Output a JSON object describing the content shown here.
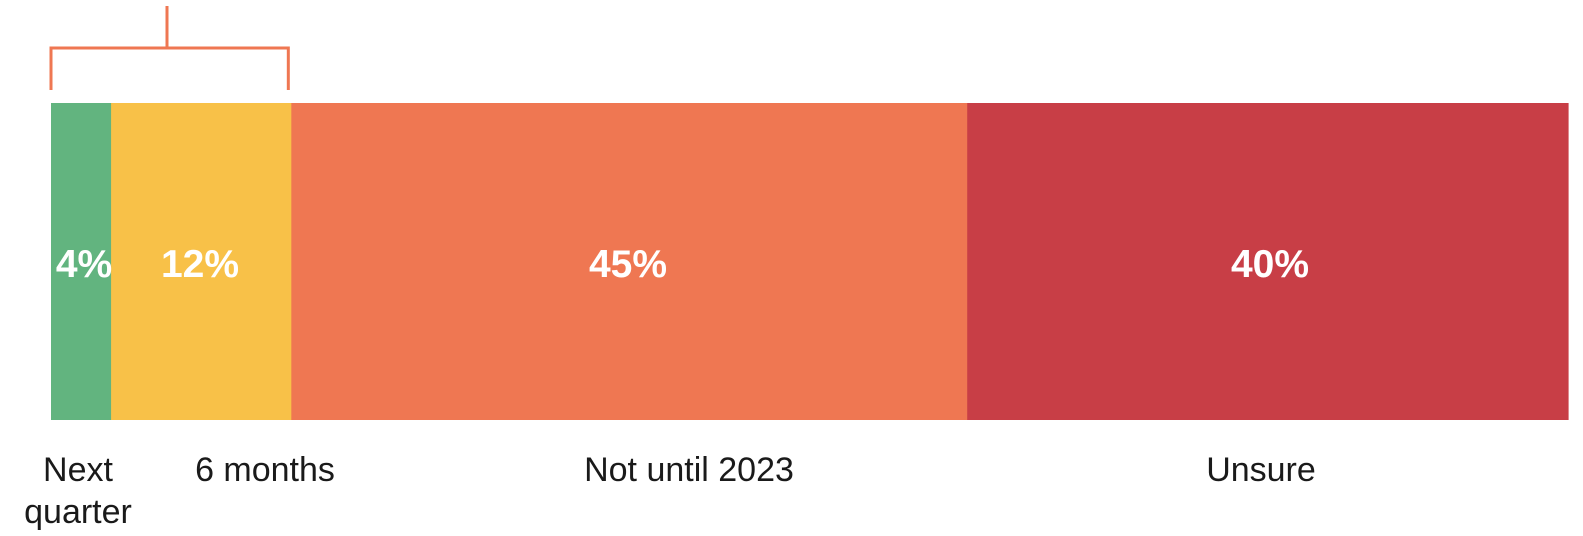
{
  "chart_data": {
    "type": "bar",
    "orientation": "horizontal-stacked",
    "categories": [
      "Next quarter",
      "6 months",
      "Not until 2023",
      "Unsure"
    ],
    "values": [
      4,
      12,
      45,
      40
    ],
    "value_labels": [
      "4%",
      "12%",
      "45%",
      "40%"
    ],
    "colors": [
      "#62b47f",
      "#f8c148",
      "#ef7752",
      "#c83e46"
    ],
    "bracket_color": "#ef7752",
    "bracket_spans_categories": [
      "Next quarter",
      "6 months"
    ]
  }
}
